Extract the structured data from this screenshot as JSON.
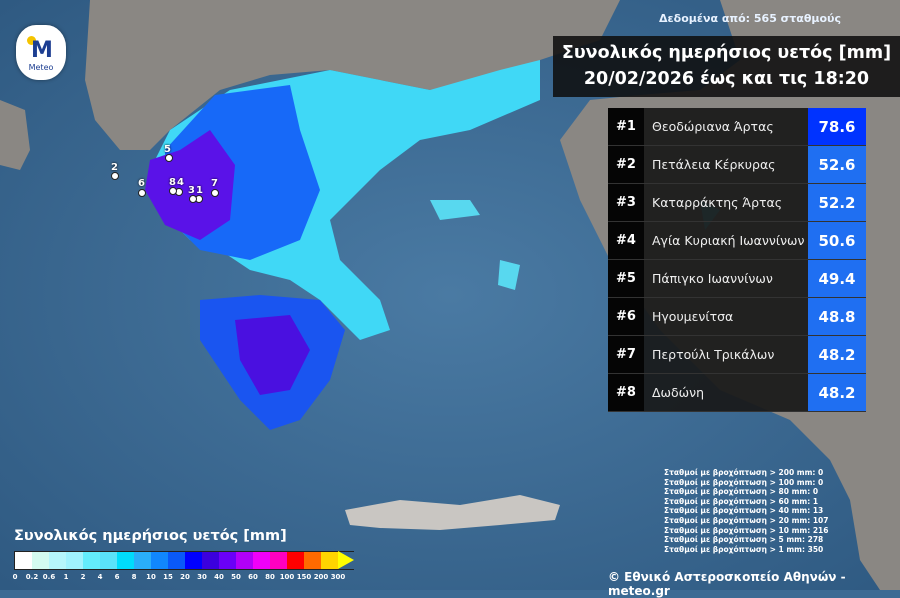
{
  "header": {
    "source": "Δεδομένα από: 565 σταθμούς",
    "title_line1": "Συνολικός ημερήσιος υετός [mm]",
    "title_line2": "20/02/2026 έως και τις 18:20"
  },
  "logo": {
    "text": "Meteo"
  },
  "ranking": [
    {
      "rank": "#1",
      "station": "Θεοδώριανα Άρτας",
      "value": "78.6",
      "color": "#0033ff"
    },
    {
      "rank": "#2",
      "station": "Πετάλεια Κέρκυρας",
      "value": "52.6",
      "color": "#1f6ff2"
    },
    {
      "rank": "#3",
      "station": "Καταρράκτης Άρτας",
      "value": "52.2",
      "color": "#1f6ff2"
    },
    {
      "rank": "#4",
      "station": "Αγία Κυριακή Ιωαννίνων",
      "value": "50.6",
      "color": "#1f6ff2"
    },
    {
      "rank": "#5",
      "station": "Πάπιγκο Ιωαννίνων",
      "value": "49.4",
      "color": "#1f6ff2"
    },
    {
      "rank": "#6",
      "station": "Ηγουμενίτσα",
      "value": "48.8",
      "color": "#1f6ff2"
    },
    {
      "rank": "#7",
      "station": "Περτούλι Τρικάλων",
      "value": "48.2",
      "color": "#1f6ff2"
    },
    {
      "rank": "#8",
      "station": "Δωδώνη",
      "value": "48.2",
      "color": "#1f6ff2"
    }
  ],
  "stats": [
    "Σταθμοί με βροχόπτωση > 200 mm: 0",
    "Σταθμοί με βροχόπτωση > 100 mm: 0",
    "Σταθμοί με βροχόπτωση > 80 mm: 0",
    "Σταθμοί με βροχόπτωση > 60 mm: 1",
    "Σταθμοί με βροχόπτωση > 40 mm: 13",
    "Σταθμοί με βροχόπτωση > 20 mm: 107",
    "Σταθμοί με βροχόπτωση > 10 mm: 216",
    "Σταθμοί με βροχόπτωση > 5 mm: 278",
    "Σταθμοί με βροχόπτωση > 1 mm: 350"
  ],
  "legend": {
    "title": "Συνολικός ημερήσιος υετός [mm]",
    "ticks": [
      "0",
      "0.2",
      "0.6",
      "1",
      "2",
      "4",
      "6",
      "8",
      "10",
      "15",
      "20",
      "30",
      "40",
      "50",
      "60",
      "80",
      "100",
      "150",
      "200",
      "300"
    ],
    "colors": [
      "#ffffff",
      "#d4fbf0",
      "#b6f6fb",
      "#a0f2fd",
      "#63ecfb",
      "#5ae2fa",
      "#00dcfc",
      "#2aaef9",
      "#1187fd",
      "#0a59f8",
      "#0000ff",
      "#3b00de",
      "#6a00f7",
      "#b100f7",
      "#f000f8",
      "#ff00c0",
      "#ff0000",
      "#ff6a00",
      "#ffd400"
    ],
    "overflow_color": "#ffff00"
  },
  "map_stations": [
    "1",
    "2",
    "3",
    "4",
    "5",
    "6",
    "7",
    "8"
  ],
  "copyright": "© Εθνικό Αστεροσκοπείο Αθηνών - meteo.gr"
}
